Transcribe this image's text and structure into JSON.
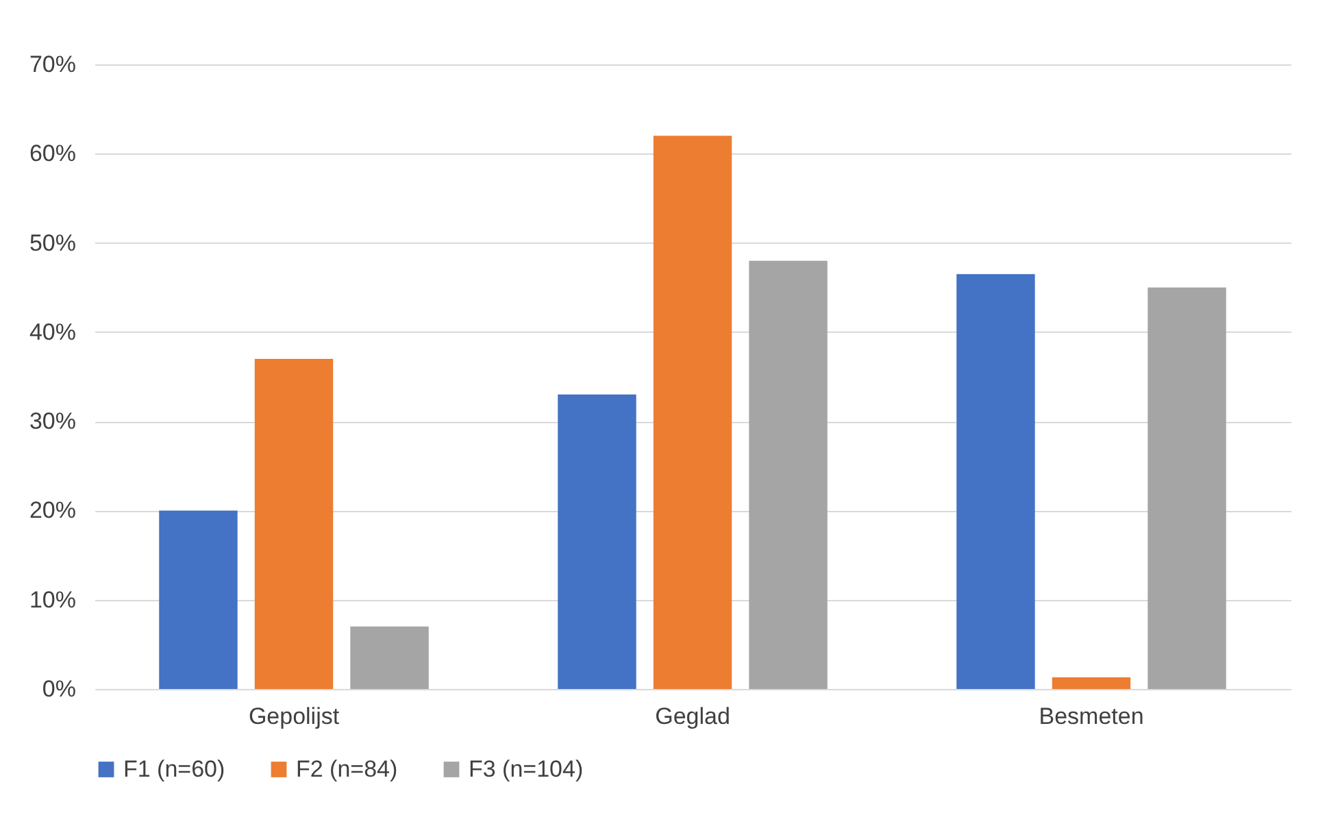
{
  "chart_data": {
    "type": "bar",
    "categories": [
      "Gepolijst",
      "Geglad",
      "Besmeten"
    ],
    "series": [
      {
        "name": "F1 (n=60)",
        "color": "#4472c4",
        "values": [
          20,
          33,
          46.5
        ]
      },
      {
        "name": "F2 (n=84)",
        "color": "#ed7d31",
        "values": [
          37,
          62,
          1.3
        ]
      },
      {
        "name": "F3 (n=104)",
        "color": "#a5a5a5",
        "values": [
          7,
          48,
          45
        ]
      }
    ],
    "ylim": [
      0,
      70
    ],
    "yticks": [
      {
        "value": 0,
        "label": "0%"
      },
      {
        "value": 10,
        "label": "10%"
      },
      {
        "value": 20,
        "label": "20%"
      },
      {
        "value": 30,
        "label": "30%"
      },
      {
        "value": 40,
        "label": "40%"
      },
      {
        "value": 50,
        "label": "50%"
      },
      {
        "value": 60,
        "label": "60%"
      },
      {
        "value": 70,
        "label": "70%"
      }
    ],
    "grid": "y",
    "legend": "bottom"
  }
}
